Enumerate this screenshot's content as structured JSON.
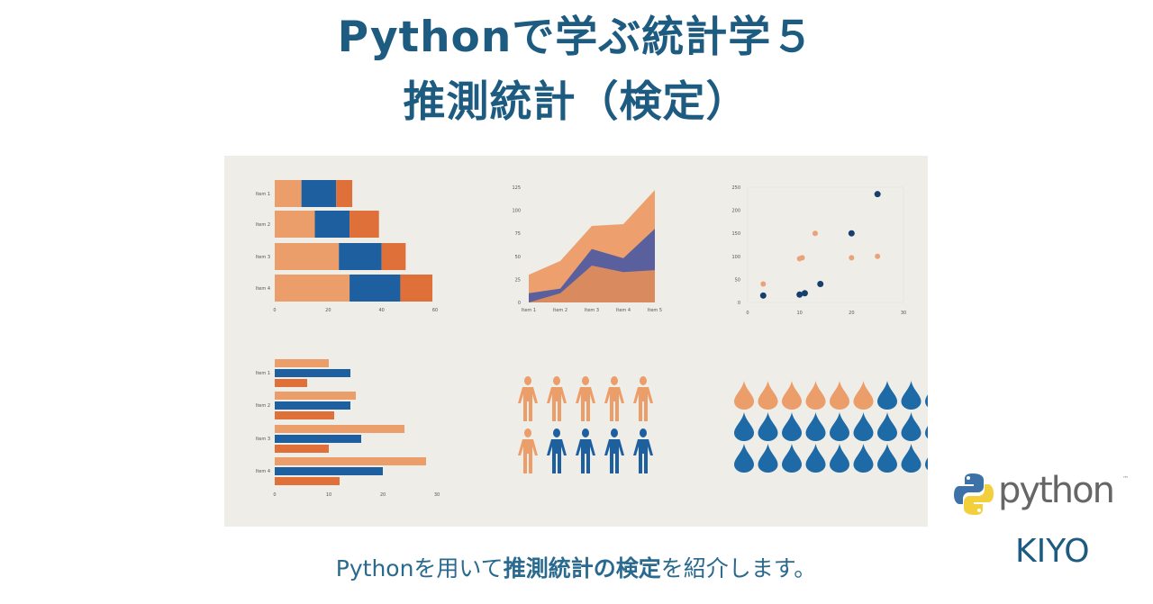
{
  "header": {
    "title_line1": "Pythonで学ぶ統計学５",
    "title_line2": "推測統計（検定）"
  },
  "subtitle": {
    "prefix": "Pythonを用いて",
    "bold": "推測統計の検定",
    "suffix": "を紹介します。"
  },
  "branding": {
    "python_wordmark": "python",
    "trademark": "™",
    "author": "KIYO"
  },
  "colors": {
    "title": "#1d5b80",
    "light_orange": "#eb9d6a",
    "orange": "#e0703a",
    "blue": "#1e5fa0",
    "photo_bg": "#efede8"
  },
  "illustration": {
    "stacked_bar": {
      "categories": [
        "Item 1",
        "Item 2",
        "Item 3",
        "Item 4"
      ],
      "x_ticks": [
        "0",
        "20",
        "40",
        "60"
      ]
    },
    "area": {
      "categories": [
        "Item 1",
        "Item 2",
        "Item 3",
        "Item 4",
        "Item 5"
      ],
      "y_ticks": [
        "0",
        "25",
        "50",
        "75",
        "100",
        "125"
      ]
    },
    "scatter": {
      "x_ticks": [
        "0",
        "10",
        "20",
        "30"
      ],
      "y_ticks": [
        "0",
        "50",
        "100",
        "150",
        "200",
        "250"
      ]
    },
    "grouped_bar": {
      "categories": [
        "Item 1",
        "Item 2",
        "Item 3",
        "Item 4"
      ],
      "x_ticks": [
        "0",
        "10",
        "20",
        "30"
      ]
    },
    "people_icons": {
      "orange": 6,
      "blue": 4
    },
    "drop_icons": {
      "orange": 6
    }
  }
}
